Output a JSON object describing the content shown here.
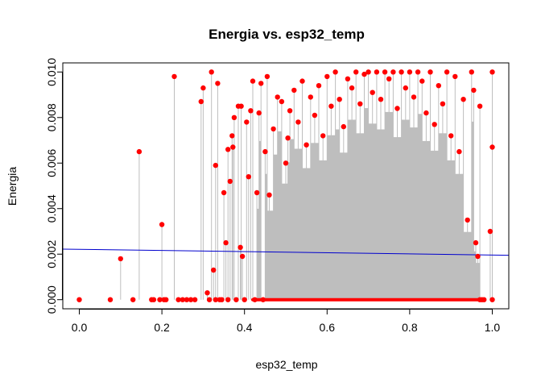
{
  "chart_data": {
    "type": "scatter",
    "title": "Energia vs. esp32_temp",
    "xlabel": "esp32_temp",
    "ylabel": "Energia",
    "xlim": [
      -0.04,
      1.04
    ],
    "ylim": [
      -0.0004,
      0.0104
    ],
    "x_ticks": [
      0.0,
      0.2,
      0.4,
      0.6,
      0.8,
      1.0
    ],
    "x_tick_labels": [
      "0.0",
      "0.2",
      "0.4",
      "0.6",
      "0.8",
      "1.0"
    ],
    "y_ticks": [
      0.0,
      0.002,
      0.004,
      0.006,
      0.008,
      0.01
    ],
    "y_tick_labels": [
      "0.000",
      "0.002",
      "0.004",
      "0.006",
      "0.008",
      "0.010"
    ],
    "grid": false,
    "legend": "none",
    "point_color": "#ff0000",
    "stem_color": "#bebebe",
    "trend_color": "#0000cd",
    "trend_line": {
      "x": [
        -0.04,
        1.04
      ],
      "y": [
        0.00222,
        0.00195
      ]
    },
    "points": [
      [
        0.0,
        0.0
      ],
      [
        0.075,
        0.0
      ],
      [
        0.1,
        0.0018
      ],
      [
        0.13,
        0.0
      ],
      [
        0.145,
        0.0065
      ],
      [
        0.175,
        0.0
      ],
      [
        0.18,
        0.0
      ],
      [
        0.195,
        0.0
      ],
      [
        0.2,
        0.0033
      ],
      [
        0.205,
        0.0
      ],
      [
        0.21,
        0.0
      ],
      [
        0.23,
        0.0098
      ],
      [
        0.24,
        0.0
      ],
      [
        0.25,
        0.0
      ],
      [
        0.26,
        0.0
      ],
      [
        0.27,
        0.0
      ],
      [
        0.28,
        0.0
      ],
      [
        0.295,
        0.0087
      ],
      [
        0.3,
        0.0093
      ],
      [
        0.31,
        0.0003
      ],
      [
        0.315,
        0.0
      ],
      [
        0.32,
        0.01
      ],
      [
        0.325,
        0.0013
      ],
      [
        0.33,
        0.0
      ],
      [
        0.33,
        0.0059
      ],
      [
        0.335,
        0.0095
      ],
      [
        0.34,
        0.0
      ],
      [
        0.345,
        0.0
      ],
      [
        0.35,
        0.0047
      ],
      [
        0.355,
        0.0025
      ],
      [
        0.36,
        0.0
      ],
      [
        0.36,
        0.0066
      ],
      [
        0.365,
        0.0052
      ],
      [
        0.37,
        0.0072
      ],
      [
        0.372,
        0.0067
      ],
      [
        0.375,
        0.008
      ],
      [
        0.38,
        0.0
      ],
      [
        0.385,
        0.0085
      ],
      [
        0.39,
        0.0023
      ],
      [
        0.392,
        0.0085
      ],
      [
        0.395,
        0.0019
      ],
      [
        0.4,
        0.0
      ],
      [
        0.405,
        0.0078
      ],
      [
        0.41,
        0.0054
      ],
      [
        0.415,
        0.0083
      ],
      [
        0.42,
        0.0096
      ],
      [
        0.425,
        0.0
      ],
      [
        0.43,
        0.0047
      ],
      [
        0.435,
        0.0082
      ],
      [
        0.44,
        0.0095
      ],
      [
        0.445,
        0.0
      ],
      [
        0.45,
        0.0065
      ],
      [
        0.455,
        0.0098
      ],
      [
        0.46,
        0.0046
      ],
      [
        0.47,
        0.0075
      ],
      [
        0.48,
        0.0089
      ],
      [
        0.49,
        0.0087
      ],
      [
        0.5,
        0.006
      ],
      [
        0.505,
        0.0071
      ],
      [
        0.51,
        0.0083
      ],
      [
        0.52,
        0.0092
      ],
      [
        0.53,
        0.0078
      ],
      [
        0.54,
        0.0096
      ],
      [
        0.55,
        0.0068
      ],
      [
        0.56,
        0.0089
      ],
      [
        0.57,
        0.0081
      ],
      [
        0.58,
        0.0094
      ],
      [
        0.59,
        0.0072
      ],
      [
        0.6,
        0.0098
      ],
      [
        0.61,
        0.0085
      ],
      [
        0.62,
        0.01
      ],
      [
        0.63,
        0.0088
      ],
      [
        0.64,
        0.0076
      ],
      [
        0.65,
        0.0097
      ],
      [
        0.66,
        0.0093
      ],
      [
        0.67,
        0.01
      ],
      [
        0.68,
        0.0086
      ],
      [
        0.69,
        0.0099
      ],
      [
        0.7,
        0.01
      ],
      [
        0.71,
        0.0091
      ],
      [
        0.72,
        0.01
      ],
      [
        0.73,
        0.0088
      ],
      [
        0.74,
        0.01
      ],
      [
        0.75,
        0.0097
      ],
      [
        0.76,
        0.01
      ],
      [
        0.77,
        0.0084
      ],
      [
        0.78,
        0.01
      ],
      [
        0.79,
        0.0093
      ],
      [
        0.8,
        0.01
      ],
      [
        0.81,
        0.0089
      ],
      [
        0.82,
        0.01
      ],
      [
        0.83,
        0.0096
      ],
      [
        0.84,
        0.0082
      ],
      [
        0.85,
        0.01
      ],
      [
        0.86,
        0.0077
      ],
      [
        0.87,
        0.0094
      ],
      [
        0.88,
        0.0086
      ],
      [
        0.89,
        0.01
      ],
      [
        0.9,
        0.0072
      ],
      [
        0.91,
        0.0098
      ],
      [
        0.92,
        0.0065
      ],
      [
        0.93,
        0.0088
      ],
      [
        0.94,
        0.0035
      ],
      [
        0.95,
        0.01
      ],
      [
        0.955,
        0.0092
      ],
      [
        0.96,
        0.0025
      ],
      [
        0.965,
        0.0019
      ],
      [
        0.97,
        0.0085
      ],
      [
        0.975,
        0.0
      ],
      [
        0.98,
        0.0
      ],
      [
        0.995,
        0.003
      ],
      [
        1.0,
        0.01
      ],
      [
        1.0,
        0.0067
      ],
      [
        1.0,
        0.0
      ],
      [
        0.97,
        0.0
      ]
    ],
    "zero_band": {
      "x_from": 0.42,
      "x_to": 0.97,
      "y": 0.0
    }
  }
}
